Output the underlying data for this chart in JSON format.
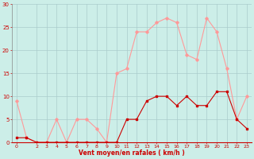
{
  "hours": [
    0,
    1,
    2,
    3,
    4,
    5,
    6,
    7,
    8,
    9,
    10,
    11,
    12,
    13,
    14,
    15,
    16,
    17,
    18,
    19,
    20,
    21,
    22,
    23
  ],
  "wind_avg": [
    1,
    1,
    0,
    0,
    0,
    0,
    0,
    0,
    0,
    0,
    0,
    5,
    5,
    9,
    10,
    10,
    8,
    10,
    8,
    8,
    11,
    11,
    5,
    3
  ],
  "wind_gust": [
    9,
    1,
    0,
    0,
    5,
    0,
    5,
    5,
    3,
    0,
    15,
    16,
    24,
    24,
    26,
    27,
    26,
    19,
    18,
    27,
    24,
    16,
    5,
    10
  ],
  "color_avg": "#cc0000",
  "color_gust": "#ff9999",
  "bg_color": "#cceee8",
  "grid_color": "#aacccc",
  "xlabel": "Vent moyen/en rafales ( km/h )",
  "ylim": [
    0,
    30
  ],
  "xlim": [
    -0.5,
    23.5
  ],
  "yticks": [
    0,
    5,
    10,
    15,
    20,
    25,
    30
  ],
  "xticks": [
    0,
    2,
    3,
    4,
    5,
    6,
    7,
    8,
    9,
    10,
    11,
    12,
    13,
    14,
    15,
    16,
    17,
    18,
    19,
    20,
    21,
    22,
    23
  ]
}
